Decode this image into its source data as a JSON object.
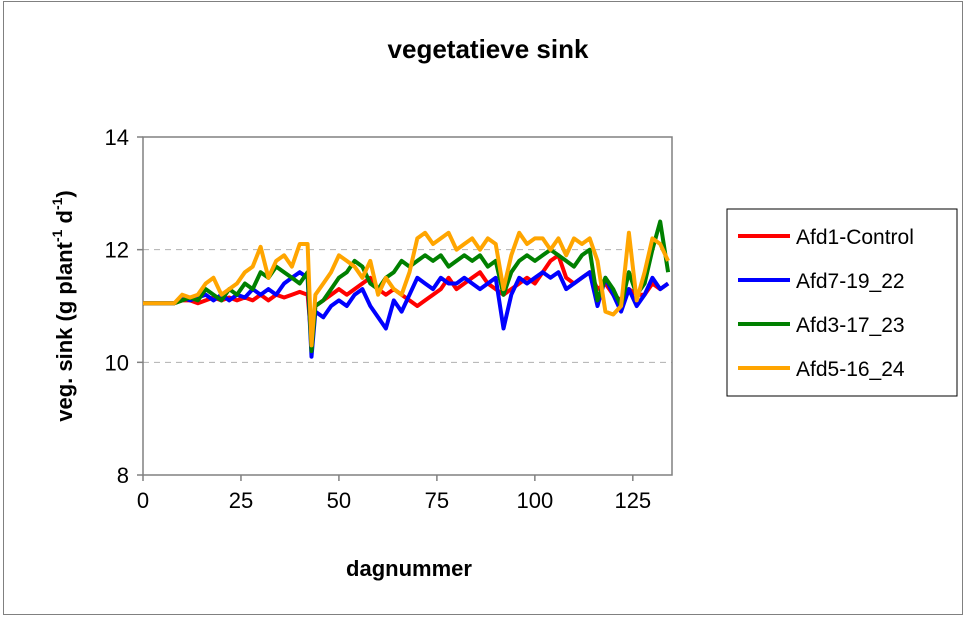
{
  "chart_data": {
    "type": "line",
    "title": "vegetatieve sink",
    "xlabel": "dagnummer",
    "ylabel_parts": [
      "veg. sink (g plant",
      "-1",
      " d",
      "-1",
      ")"
    ],
    "xlim": [
      0,
      135
    ],
    "ylim": [
      8,
      14
    ],
    "xticks": [
      0,
      25,
      50,
      75,
      100,
      125
    ],
    "yticks": [
      8,
      10,
      12,
      14
    ],
    "grid": "horizontal dashed",
    "legend_position": "right",
    "series": [
      {
        "name": "Afd1-Control",
        "color": "#ff0000",
        "x": [
          0,
          2,
          4,
          6,
          8,
          10,
          12,
          14,
          16,
          18,
          20,
          22,
          24,
          26,
          28,
          30,
          32,
          34,
          36,
          38,
          40,
          42,
          43,
          44,
          46,
          48,
          50,
          52,
          54,
          56,
          58,
          60,
          62,
          64,
          66,
          68,
          70,
          72,
          74,
          76,
          78,
          80,
          82,
          84,
          86,
          88,
          90,
          92,
          94,
          96,
          98,
          100,
          102,
          104,
          106,
          108,
          110,
          112,
          114,
          116,
          118,
          120,
          122,
          124,
          126,
          128,
          130,
          132,
          134
        ],
        "y": [
          11.05,
          11.05,
          11.05,
          11.05,
          11.05,
          11.1,
          11.1,
          11.05,
          11.1,
          11.15,
          11.1,
          11.15,
          11.1,
          11.15,
          11.1,
          11.2,
          11.1,
          11.2,
          11.15,
          11.2,
          11.25,
          11.2,
          10.4,
          11.0,
          11.1,
          11.2,
          11.3,
          11.2,
          11.3,
          11.4,
          11.5,
          11.3,
          11.2,
          11.3,
          11.2,
          11.1,
          11.0,
          11.1,
          11.2,
          11.3,
          11.5,
          11.3,
          11.4,
          11.5,
          11.6,
          11.4,
          11.3,
          11.2,
          11.3,
          11.4,
          11.5,
          11.4,
          11.6,
          11.8,
          11.9,
          11.5,
          11.4,
          11.5,
          11.6,
          11.3,
          11.4,
          11.2,
          11.1,
          11.3,
          11.2,
          11.2,
          11.4,
          11.3,
          11.4
        ]
      },
      {
        "name": "Afd7-19_22",
        "color": "#0000ff",
        "x": [
          0,
          2,
          4,
          6,
          8,
          10,
          12,
          14,
          16,
          18,
          20,
          22,
          24,
          26,
          28,
          30,
          32,
          34,
          36,
          38,
          40,
          42,
          43,
          44,
          46,
          48,
          50,
          52,
          54,
          56,
          58,
          60,
          62,
          64,
          66,
          68,
          70,
          72,
          74,
          76,
          78,
          80,
          82,
          84,
          86,
          88,
          90,
          92,
          94,
          96,
          98,
          100,
          102,
          104,
          106,
          108,
          110,
          112,
          114,
          116,
          118,
          120,
          122,
          124,
          126,
          128,
          130,
          132,
          134
        ],
        "y": [
          11.05,
          11.05,
          11.05,
          11.05,
          11.05,
          11.15,
          11.1,
          11.15,
          11.2,
          11.1,
          11.2,
          11.1,
          11.2,
          11.15,
          11.3,
          11.2,
          11.3,
          11.2,
          11.4,
          11.5,
          11.6,
          11.5,
          10.1,
          10.9,
          10.8,
          11.0,
          11.1,
          11.0,
          11.2,
          11.3,
          11.0,
          10.8,
          10.6,
          11.1,
          10.9,
          11.2,
          11.5,
          11.4,
          11.3,
          11.5,
          11.4,
          11.4,
          11.5,
          11.4,
          11.3,
          11.4,
          11.5,
          10.6,
          11.2,
          11.5,
          11.4,
          11.5,
          11.6,
          11.5,
          11.6,
          11.3,
          11.4,
          11.5,
          11.6,
          11.0,
          11.5,
          11.2,
          10.9,
          11.3,
          11.0,
          11.2,
          11.5,
          11.3,
          11.4
        ]
      },
      {
        "name": "Afd3-17_23",
        "color": "#008000",
        "x": [
          0,
          2,
          4,
          6,
          8,
          10,
          12,
          14,
          16,
          18,
          20,
          22,
          24,
          26,
          28,
          30,
          32,
          34,
          36,
          38,
          40,
          42,
          43,
          44,
          46,
          48,
          50,
          52,
          54,
          56,
          58,
          60,
          62,
          64,
          66,
          68,
          70,
          72,
          74,
          76,
          78,
          80,
          82,
          84,
          86,
          88,
          90,
          92,
          94,
          96,
          98,
          100,
          102,
          104,
          106,
          108,
          110,
          112,
          114,
          116,
          118,
          120,
          122,
          124,
          126,
          128,
          130,
          132,
          134
        ],
        "y": [
          11.05,
          11.05,
          11.05,
          11.05,
          11.05,
          11.1,
          11.15,
          11.1,
          11.3,
          11.2,
          11.1,
          11.3,
          11.2,
          11.4,
          11.3,
          11.6,
          11.5,
          11.7,
          11.6,
          11.5,
          11.4,
          11.6,
          10.2,
          11.0,
          11.1,
          11.3,
          11.5,
          11.6,
          11.8,
          11.7,
          11.4,
          11.3,
          11.5,
          11.6,
          11.8,
          11.7,
          11.8,
          11.9,
          11.8,
          11.9,
          11.7,
          11.8,
          11.9,
          11.8,
          11.9,
          11.7,
          11.8,
          11.2,
          11.6,
          11.8,
          11.9,
          11.8,
          11.9,
          12.0,
          11.9,
          11.8,
          11.7,
          11.9,
          12.0,
          11.1,
          11.5,
          11.3,
          11.0,
          11.6,
          11.2,
          11.4,
          12.0,
          12.5,
          11.6
        ]
      },
      {
        "name": "Afd5-16_24",
        "color": "#ffa500",
        "x": [
          0,
          2,
          4,
          6,
          8,
          10,
          12,
          14,
          16,
          18,
          20,
          22,
          24,
          26,
          28,
          30,
          32,
          34,
          36,
          38,
          40,
          42,
          43,
          44,
          46,
          48,
          50,
          52,
          54,
          56,
          58,
          60,
          62,
          64,
          66,
          68,
          70,
          72,
          74,
          76,
          78,
          80,
          82,
          84,
          86,
          88,
          90,
          92,
          94,
          96,
          98,
          100,
          102,
          104,
          106,
          108,
          110,
          112,
          114,
          116,
          118,
          120,
          122,
          124,
          126,
          128,
          130,
          132,
          134
        ],
        "y": [
          11.05,
          11.05,
          11.05,
          11.05,
          11.05,
          11.2,
          11.15,
          11.2,
          11.4,
          11.5,
          11.2,
          11.3,
          11.4,
          11.6,
          11.7,
          12.05,
          11.5,
          11.8,
          11.9,
          11.7,
          12.1,
          12.1,
          10.3,
          11.2,
          11.4,
          11.6,
          11.9,
          11.8,
          11.7,
          11.5,
          11.8,
          11.2,
          11.5,
          11.3,
          11.2,
          11.6,
          12.2,
          12.3,
          12.1,
          12.2,
          12.3,
          12.0,
          12.1,
          12.2,
          12.0,
          12.2,
          12.1,
          11.3,
          11.9,
          12.3,
          12.1,
          12.2,
          12.2,
          12.0,
          12.2,
          11.9,
          12.2,
          12.1,
          12.2,
          11.8,
          10.9,
          10.85,
          11.0,
          12.3,
          11.1,
          11.6,
          12.2,
          12.1,
          11.8
        ]
      }
    ]
  }
}
